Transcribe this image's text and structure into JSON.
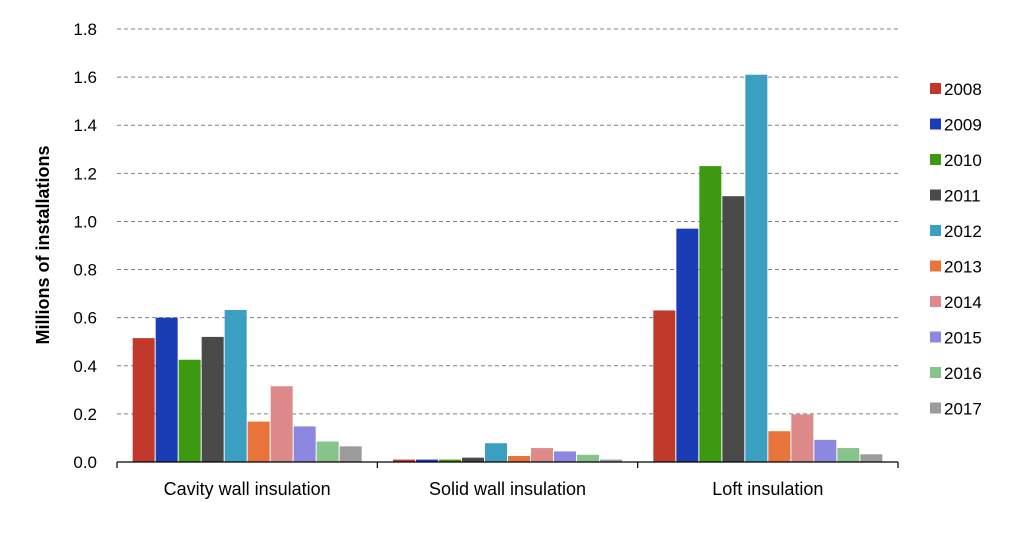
{
  "chart_data": {
    "type": "bar",
    "title": "",
    "xlabel": "",
    "ylabel": "Millions of installations",
    "ylim": [
      0,
      1.8
    ],
    "yticks": [
      "0.0",
      "0.2",
      "0.4",
      "0.6",
      "0.8",
      "1.0",
      "1.2",
      "1.4",
      "1.6",
      "1.8"
    ],
    "grid": true,
    "legend_position": "right",
    "categories": [
      "Cavity wall insulation",
      "Solid wall insulation",
      "Loft insulation"
    ],
    "series": [
      {
        "name": "2008",
        "color": "#c0392b",
        "values": [
          0.515,
          0.01,
          0.63
        ]
      },
      {
        "name": "2009",
        "color": "#1a3db5",
        "values": [
          0.6,
          0.01,
          0.97
        ]
      },
      {
        "name": "2010",
        "color": "#3d9a10",
        "values": [
          0.425,
          0.01,
          1.23
        ]
      },
      {
        "name": "2011",
        "color": "#4a4a4a",
        "values": [
          0.52,
          0.018,
          1.105
        ]
      },
      {
        "name": "2012",
        "color": "#3a9fc0",
        "values": [
          0.632,
          0.078,
          1.61
        ]
      },
      {
        "name": "2013",
        "color": "#e8743b",
        "values": [
          0.168,
          0.025,
          0.128
        ]
      },
      {
        "name": "2014",
        "color": "#de8a8a",
        "values": [
          0.315,
          0.058,
          0.198
        ]
      },
      {
        "name": "2015",
        "color": "#8c88e0",
        "values": [
          0.148,
          0.044,
          0.092
        ]
      },
      {
        "name": "2016",
        "color": "#86c48c",
        "values": [
          0.085,
          0.03,
          0.058
        ]
      },
      {
        "name": "2017",
        "color": "#9b9b9b",
        "values": [
          0.065,
          0.01,
          0.032
        ]
      }
    ]
  }
}
